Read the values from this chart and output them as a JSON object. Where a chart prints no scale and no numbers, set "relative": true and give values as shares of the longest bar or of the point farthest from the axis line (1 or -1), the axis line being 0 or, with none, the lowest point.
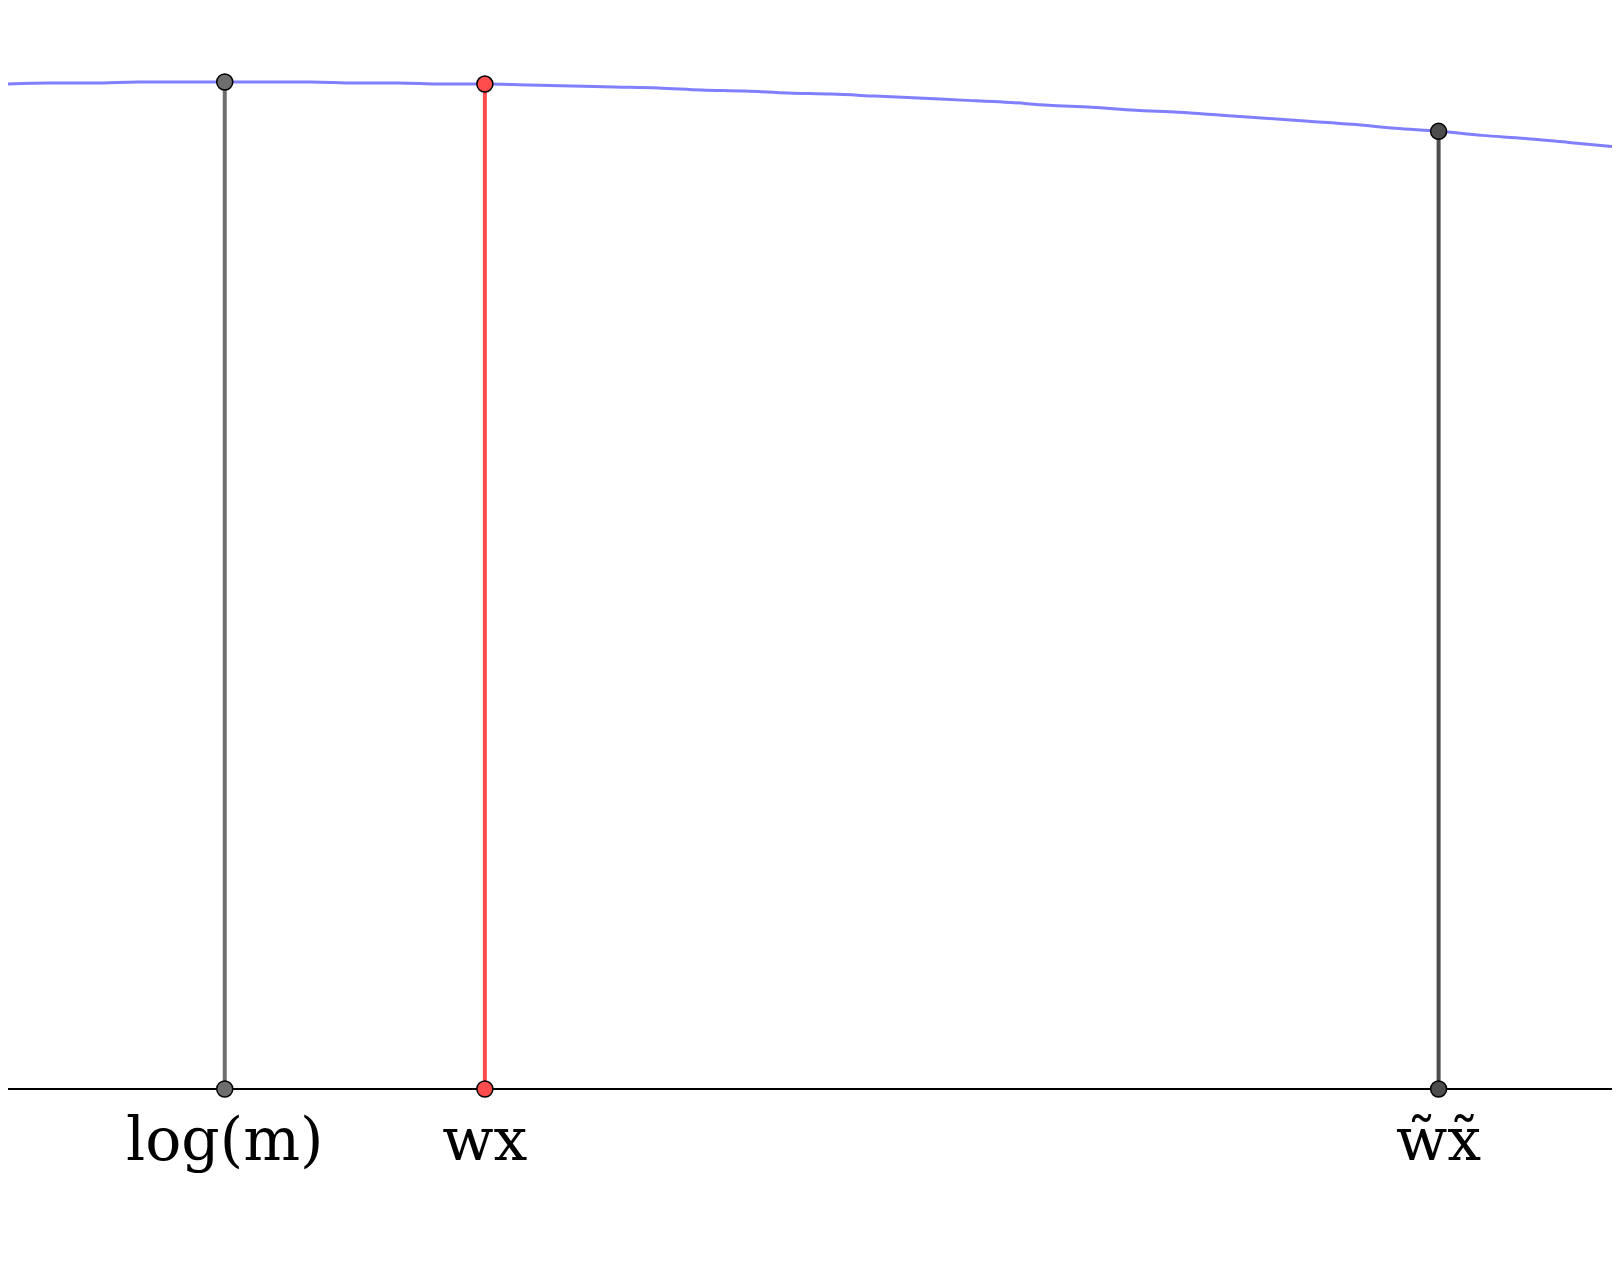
{
  "chart_data": {
    "type": "line",
    "relative": true,
    "categories": [
      null,
      null,
      null,
      null,
      null,
      "log(m)",
      null,
      null,
      null,
      null,
      null,
      "wx",
      null,
      null,
      null,
      null,
      null,
      null,
      null,
      null,
      null,
      null,
      null,
      null,
      null,
      null,
      null,
      null,
      null,
      null,
      null,
      null,
      null,
      "w̃x̃",
      null,
      null,
      null,
      null
    ],
    "series": [
      {
        "type": "line",
        "color": "#8080ff",
        "values": [
          0.998,
          0.999,
          0.999,
          1.0,
          1.0,
          1.0,
          1.0,
          1.0,
          0.999,
          0.999,
          0.998,
          0.998,
          0.997,
          0.996,
          0.995,
          0.994,
          0.992,
          0.991,
          0.989,
          0.988,
          0.986,
          0.984,
          0.982,
          0.98,
          0.977,
          0.975,
          0.972,
          0.97,
          0.967,
          0.964,
          0.961,
          0.958,
          0.954,
          0.951,
          0.947,
          0.944,
          0.94,
          0.936
        ]
      },
      {
        "type": "lollipop",
        "marker": "circle",
        "colors": [
          null,
          null,
          null,
          null,
          null,
          "#6e6e6e",
          null,
          null,
          null,
          null,
          null,
          "#ff4d4d",
          null,
          null,
          null,
          null,
          null,
          null,
          null,
          null,
          null,
          null,
          null,
          null,
          null,
          null,
          null,
          null,
          null,
          null,
          null,
          null,
          null,
          "#4d4d4d",
          null,
          null,
          null,
          null
        ],
        "values": [
          null,
          null,
          null,
          null,
          null,
          1.0,
          null,
          null,
          null,
          null,
          null,
          0.998,
          null,
          null,
          null,
          null,
          null,
          null,
          null,
          null,
          null,
          null,
          null,
          null,
          null,
          null,
          null,
          null,
          null,
          null,
          null,
          null,
          null,
          0.951,
          null,
          null,
          null,
          null
        ]
      },
      {
        "type": "scatter",
        "marker": "circle",
        "colors": [
          null,
          null,
          null,
          null,
          null,
          "#6e6e6e",
          null,
          null,
          null,
          null,
          null,
          "#ff4d4d",
          null,
          null,
          null,
          null,
          null,
          null,
          null,
          null,
          null,
          null,
          null,
          null,
          null,
          null,
          null,
          null,
          null,
          null,
          null,
          null,
          null,
          "#4d4d4d",
          null,
          null,
          null,
          null
        ],
        "values": [
          null,
          null,
          null,
          null,
          null,
          0,
          null,
          null,
          null,
          null,
          null,
          0,
          null,
          null,
          null,
          null,
          null,
          null,
          null,
          null,
          null,
          null,
          null,
          null,
          null,
          null,
          null,
          null,
          null,
          null,
          null,
          null,
          null,
          0,
          null,
          null,
          null,
          null
        ]
      }
    ]
  }
}
